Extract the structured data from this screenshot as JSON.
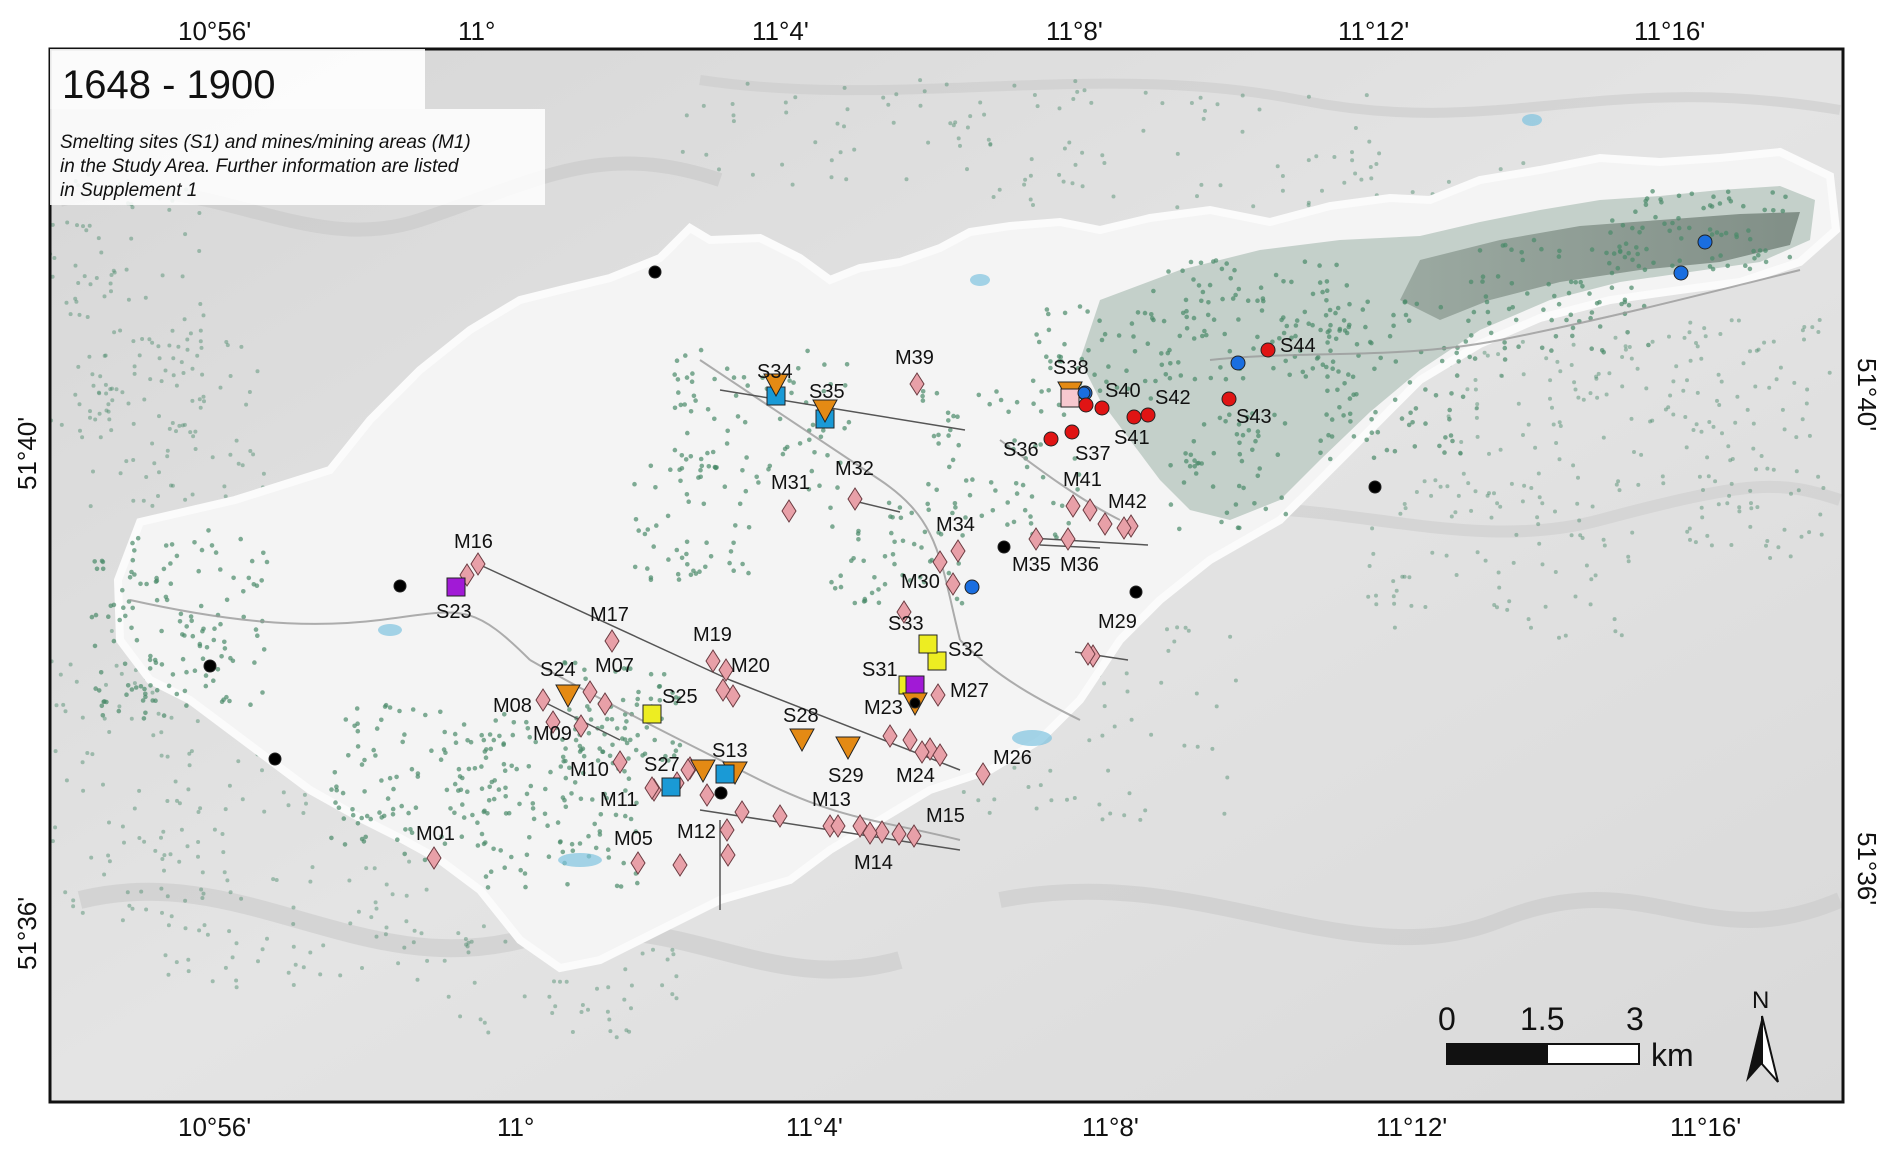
{
  "title": "1648 - 1900",
  "caption_lines": [
    "Smelting sites (S1) and mines/mining areas (M1)",
    "in the Study Area. Further information are listed",
    "in Supplement 1"
  ],
  "lon_labels": [
    "10°56'",
    "11°",
    "11°4'",
    "11°8'",
    "11°12'",
    "11°16'"
  ],
  "lat_labels": [
    "51°40'",
    "51°36'"
  ],
  "scale_bar": {
    "labels": [
      "0",
      "1.5",
      "3"
    ],
    "unit": "km"
  },
  "north_label": "N",
  "colors": {
    "mine": "#e8a0a8",
    "smelter_blue": "#1a9ad6",
    "smelter_orange": "#e48a14",
    "smelter_yellow": "#eded22",
    "smelter_purple": "#a11ad6",
    "smelter_pink": "#f7c8cf",
    "red_point": "#e01414",
    "blue_point": "#1a6ee0",
    "black_point": "#000000",
    "forest_points": "#4a8a6a"
  },
  "labels": {
    "S23": "S23",
    "S24": "S24",
    "S25": "S25",
    "S27": "S27",
    "S13": "S13",
    "S28": "S28",
    "S29": "S29",
    "S31": "S31",
    "S32": "S32",
    "S33": "S33",
    "S34": "S34",
    "S35": "S35",
    "S36": "S36",
    "S37": "S37",
    "S38": "S38",
    "S40": "S40",
    "S41": "S41",
    "S42": "S42",
    "S43": "S43",
    "S44": "S44",
    "M01": "M01",
    "M05": "M05",
    "M07": "M07",
    "M08": "M08",
    "M09": "M09",
    "M10": "M10",
    "M11": "M11",
    "M12": "M12",
    "M13": "M13",
    "M14": "M14",
    "M15": "M15",
    "M16": "M16",
    "M17": "M17",
    "M19": "M19",
    "M20": "M20",
    "M23": "M23",
    "M24": "M24",
    "M26": "M26",
    "M27": "M27",
    "M29": "M29",
    "M30": "M30",
    "M31": "M31",
    "M32": "M32",
    "M34": "M34",
    "M35": "M35",
    "M36": "M36",
    "M39": "M39",
    "M41": "M41",
    "M42": "M42"
  }
}
